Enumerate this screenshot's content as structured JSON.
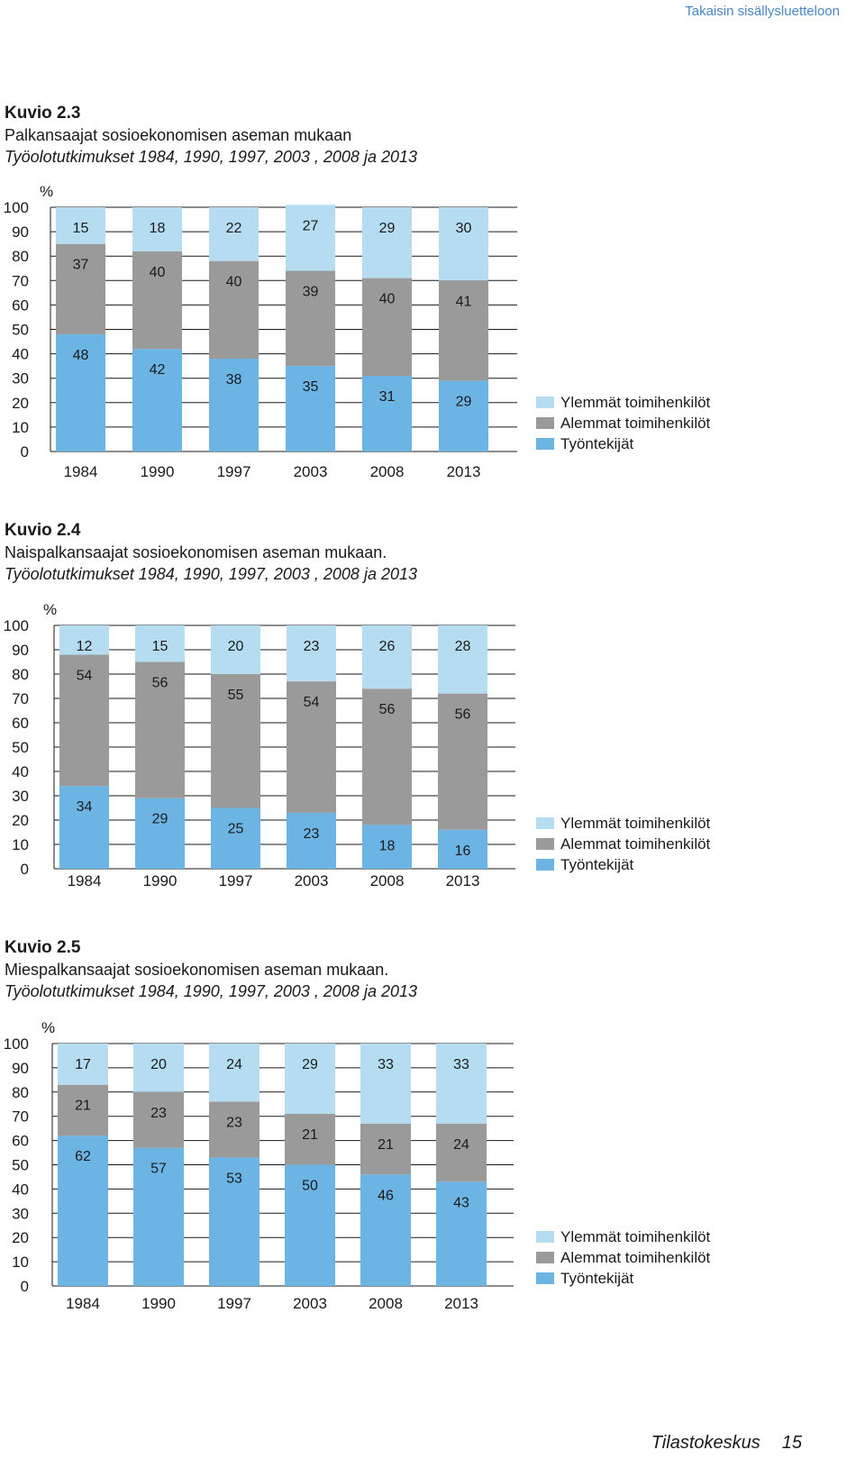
{
  "nav": {
    "back_link": "Takaisin sisällysluetteloon"
  },
  "colors": {
    "upper": "#b6dcf2",
    "lower": "#9a9a9a",
    "workers": "#6cb4e4"
  },
  "chart_data": [
    {
      "type": "bar",
      "stacked": true,
      "heading": "Kuvio 2.3",
      "title": "Palkansaajat sosioekonomisen aseman mukaan",
      "subtitle": "Työolotutkimukset 1984, 1990, 1997, 2003 , 2008 ja 2013",
      "ylabel": "%",
      "ylim": [
        0,
        100
      ],
      "yticks": [
        "100",
        "90",
        "80",
        "70",
        "60",
        "50",
        "40",
        "30",
        "20",
        "10",
        "0"
      ],
      "categories": [
        "1984",
        "1990",
        "1997",
        "2003",
        "2008",
        "2013"
      ],
      "legend_position": "right",
      "series": [
        {
          "name": "Ylemmät toimihenkilöt",
          "values": [
            15,
            18,
            22,
            27,
            29,
            30
          ]
        },
        {
          "name": "Alemmat toimihenkilöt",
          "values": [
            37,
            40,
            40,
            39,
            40,
            41
          ]
        },
        {
          "name": "Työntekijät",
          "values": [
            48,
            42,
            38,
            35,
            31,
            29
          ]
        }
      ]
    },
    {
      "type": "bar",
      "stacked": true,
      "heading": "Kuvio 2.4",
      "title": "Naispalkansaajat sosioekonomisen aseman mukaan.",
      "subtitle": "Työolotutkimukset 1984, 1990, 1997, 2003 , 2008 ja 2013",
      "ylabel": "%",
      "ylim": [
        0,
        100
      ],
      "yticks": [
        "100",
        "90",
        "80",
        "70",
        "60",
        "50",
        "40",
        "30",
        "20",
        "10",
        "0"
      ],
      "categories": [
        "1984",
        "1990",
        "1997",
        "2003",
        "2008",
        "2013"
      ],
      "legend_position": "right",
      "series": [
        {
          "name": "Ylemmät toimihenkilöt",
          "values": [
            12,
            15,
            20,
            23,
            26,
            28
          ]
        },
        {
          "name": "Alemmat toimihenkilöt",
          "values": [
            54,
            56,
            55,
            54,
            56,
            56
          ]
        },
        {
          "name": "Työntekijät",
          "values": [
            34,
            29,
            25,
            23,
            18,
            16
          ]
        }
      ]
    },
    {
      "type": "bar",
      "stacked": true,
      "heading": "Kuvio 2.5",
      "title": "Miespalkansaajat sosioekonomisen aseman mukaan.",
      "subtitle": "Työolotutkimukset 1984, 1990, 1997, 2003 , 2008 ja 2013",
      "ylabel": "%",
      "ylim": [
        0,
        100
      ],
      "yticks": [
        "100",
        "90",
        "80",
        "70",
        "60",
        "50",
        "40",
        "30",
        "20",
        "10",
        "0"
      ],
      "categories": [
        "1984",
        "1990",
        "1997",
        "2003",
        "2008",
        "2013"
      ],
      "legend_position": "right",
      "series": [
        {
          "name": "Ylemmät toimihenkilöt",
          "values": [
            17,
            20,
            24,
            29,
            33,
            33
          ]
        },
        {
          "name": "Alemmat toimihenkilöt",
          "values": [
            21,
            23,
            23,
            21,
            21,
            24
          ]
        },
        {
          "name": "Työntekijät",
          "values": [
            62,
            57,
            53,
            50,
            46,
            43
          ]
        }
      ]
    }
  ],
  "footer": {
    "publisher": "Tilastokeskus",
    "page": "15"
  }
}
